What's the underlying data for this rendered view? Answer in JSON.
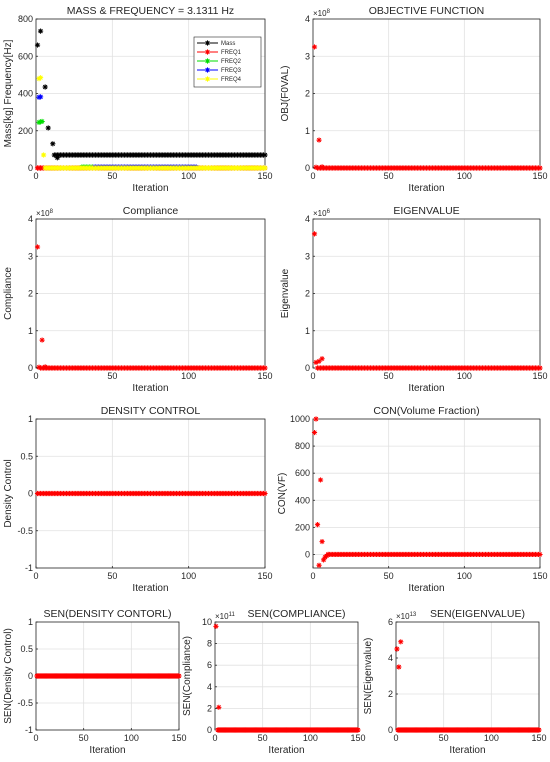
{
  "charts": [
    {
      "id": "p1",
      "title": "MASS & FREQUENCY = 3.1311 Hz",
      "xlabel": "Iteration",
      "ylabel": "Mass[kg] Frequency[Hz]",
      "xlim": [
        0,
        150
      ],
      "ylim": [
        0,
        800
      ],
      "xticks": [
        "0",
        "50",
        "100",
        "150"
      ],
      "yticks": [
        "0",
        "200",
        "400",
        "600",
        "800"
      ],
      "legend": [
        "Mass",
        "FREQ1",
        "FREQ2",
        "FREQ3",
        "FREQ4"
      ]
    },
    {
      "id": "p2",
      "title": "OBJECTIVE FUNCTION",
      "xlabel": "Iteration",
      "ylabel": "OBJ(F0VAL)",
      "exponent": "8",
      "xlim": [
        0,
        150
      ],
      "ylim": [
        0,
        4
      ],
      "xticks": [
        "0",
        "50",
        "100",
        "150"
      ],
      "yticks": [
        "0",
        "1",
        "2",
        "3",
        "4"
      ]
    },
    {
      "id": "p3",
      "title": "Compliance",
      "xlabel": "Iteration",
      "ylabel": "Compliance",
      "exponent": "8",
      "xlim": [
        0,
        150
      ],
      "ylim": [
        0,
        4
      ],
      "xticks": [
        "0",
        "50",
        "100",
        "150"
      ],
      "yticks": [
        "0",
        "1",
        "2",
        "3",
        "4"
      ]
    },
    {
      "id": "p4",
      "title": "EIGENVALUE",
      "xlabel": "Iteration",
      "ylabel": "Eigenvalue",
      "exponent": "6",
      "xlim": [
        0,
        150
      ],
      "ylim": [
        0,
        4
      ],
      "xticks": [
        "0",
        "50",
        "100",
        "150"
      ],
      "yticks": [
        "0",
        "1",
        "2",
        "3",
        "4"
      ]
    },
    {
      "id": "p5",
      "title": "DENSITY CONTROL",
      "xlabel": "Iteration",
      "ylabel": "Density Control",
      "xlim": [
        0,
        150
      ],
      "ylim": [
        -1,
        1
      ],
      "xticks": [
        "0",
        "50",
        "100",
        "150"
      ],
      "yticks": [
        "-1",
        "-0.5",
        "0",
        "0.5",
        "1"
      ]
    },
    {
      "id": "p6",
      "title": "CON(Volume Fraction)",
      "xlabel": "Iteration",
      "ylabel": "CON(VF)",
      "xlim": [
        0,
        150
      ],
      "ylim": [
        -100,
        1000
      ],
      "xticks": [
        "0",
        "50",
        "100",
        "150"
      ],
      "yticks": [
        "0",
        "200",
        "400",
        "600",
        "800",
        "1000"
      ]
    },
    {
      "id": "p7",
      "title": "SEN(DENSITY CONTORL)",
      "xlabel": "Iteration",
      "ylabel": "SEN(Density Control)",
      "xlim": [
        0,
        150
      ],
      "ylim": [
        -1,
        1
      ],
      "xticks": [
        "0",
        "50",
        "100",
        "150"
      ],
      "yticks": [
        "-1",
        "-0.5",
        "0",
        "0.5",
        "1"
      ]
    },
    {
      "id": "p8",
      "title": "SEN(COMPLIANCE)",
      "xlabel": "Iteration",
      "ylabel": "SEN(Compliance)",
      "exponent": "11",
      "xlim": [
        0,
        150
      ],
      "ylim": [
        0,
        10
      ],
      "xticks": [
        "0",
        "50",
        "100",
        "150"
      ],
      "yticks": [
        "0",
        "2",
        "4",
        "6",
        "8",
        "10"
      ]
    },
    {
      "id": "p9",
      "title": "SEN(EIGENVALUE)",
      "xlabel": "Iteration",
      "ylabel": "SEN(Eigenvalue)",
      "exponent": "13",
      "xlim": [
        0,
        150
      ],
      "ylim": [
        0,
        6
      ],
      "xticks": [
        "0",
        "50",
        "100",
        "150"
      ],
      "yticks": [
        "0",
        "2",
        "4",
        "6"
      ]
    }
  ],
  "chart_data": [
    {
      "type": "scatter",
      "panel": "p1",
      "series": [
        {
          "name": "Mass",
          "color": "#000000",
          "x": [
            1,
            3,
            6,
            8,
            11,
            14
          ],
          "y": [
            660,
            735,
            435,
            215,
            130,
            55
          ],
          "steady_from": 12,
          "steady_to": 150,
          "steady_value": 70
        },
        {
          "name": "FREQ1",
          "color": "#ff0000",
          "x": [
            1,
            2,
            3
          ],
          "y": [
            0,
            0,
            0
          ],
          "steady_from": 1,
          "steady_to": 150,
          "steady_value": 0
        },
        {
          "name": "FREQ2",
          "color": "#00dd00",
          "x": [
            2,
            3,
            4
          ],
          "y": [
            245,
            248,
            250
          ],
          "steady_from": 30,
          "steady_to": 38,
          "steady_value": 5
        },
        {
          "name": "FREQ3",
          "color": "#0000ff",
          "x": [
            2,
            3
          ],
          "y": [
            380,
            382
          ],
          "steady_from": 38,
          "steady_to": 105,
          "steady_value": 5
        },
        {
          "name": "FREQ4",
          "color": "#ffff00",
          "x": [
            2,
            3,
            5
          ],
          "y": [
            480,
            485,
            70
          ],
          "steady_from": 6,
          "steady_to": 150,
          "steady_value": 0
        }
      ]
    },
    {
      "type": "scatter",
      "panel": "p2",
      "exponent": 8,
      "series": [
        {
          "color": "#ff0000",
          "x": [
            1,
            2,
            4,
            6
          ],
          "y": [
            3.25,
            0.02,
            0.75,
            0.03
          ],
          "steady_from": 3,
          "steady_to": 150,
          "steady_value": 0
        }
      ]
    },
    {
      "type": "scatter",
      "panel": "p3",
      "exponent": 8,
      "series": [
        {
          "color": "#ff0000",
          "x": [
            1,
            2,
            4,
            6
          ],
          "y": [
            3.25,
            0.02,
            0.75,
            0.03
          ],
          "steady_from": 3,
          "steady_to": 150,
          "steady_value": 0
        }
      ]
    },
    {
      "type": "scatter",
      "panel": "p4",
      "exponent": 6,
      "series": [
        {
          "color": "#ff0000",
          "x": [
            1,
            2,
            4,
            6
          ],
          "y": [
            3.6,
            0.15,
            0.18,
            0.25
          ],
          "steady_from": 3,
          "steady_to": 150,
          "steady_value": 0
        }
      ]
    },
    {
      "type": "scatter",
      "panel": "p5",
      "series": [
        {
          "color": "#ff0000",
          "x": [],
          "y": [],
          "steady_from": 1,
          "steady_to": 150,
          "steady_value": 0
        }
      ]
    },
    {
      "type": "scatter",
      "panel": "p6",
      "series": [
        {
          "color": "#ff0000",
          "x": [
            1,
            2,
            3,
            4,
            5,
            6,
            7,
            8,
            9,
            10
          ],
          "y": [
            900,
            1000,
            220,
            -80,
            550,
            95,
            -40,
            -20,
            -10,
            0
          ],
          "steady_from": 10,
          "steady_to": 150,
          "steady_value": 0
        }
      ]
    },
    {
      "type": "scatter",
      "panel": "p7",
      "series": [
        {
          "color": "#ff0000",
          "x": [],
          "y": [],
          "steady_from": 1,
          "steady_to": 150,
          "steady_value": 0
        }
      ]
    },
    {
      "type": "scatter",
      "panel": "p8",
      "exponent": 11,
      "series": [
        {
          "color": "#ff0000",
          "x": [
            1,
            4
          ],
          "y": [
            9.6,
            2.1
          ],
          "steady_from": 3,
          "steady_to": 150,
          "steady_value": 0
        }
      ]
    },
    {
      "type": "scatter",
      "panel": "p9",
      "exponent": 13,
      "series": [
        {
          "color": "#ff0000",
          "x": [
            1,
            3,
            5
          ],
          "y": [
            4.5,
            3.5,
            4.9
          ],
          "steady_from": 2,
          "steady_to": 150,
          "steady_value": 0
        }
      ]
    }
  ]
}
